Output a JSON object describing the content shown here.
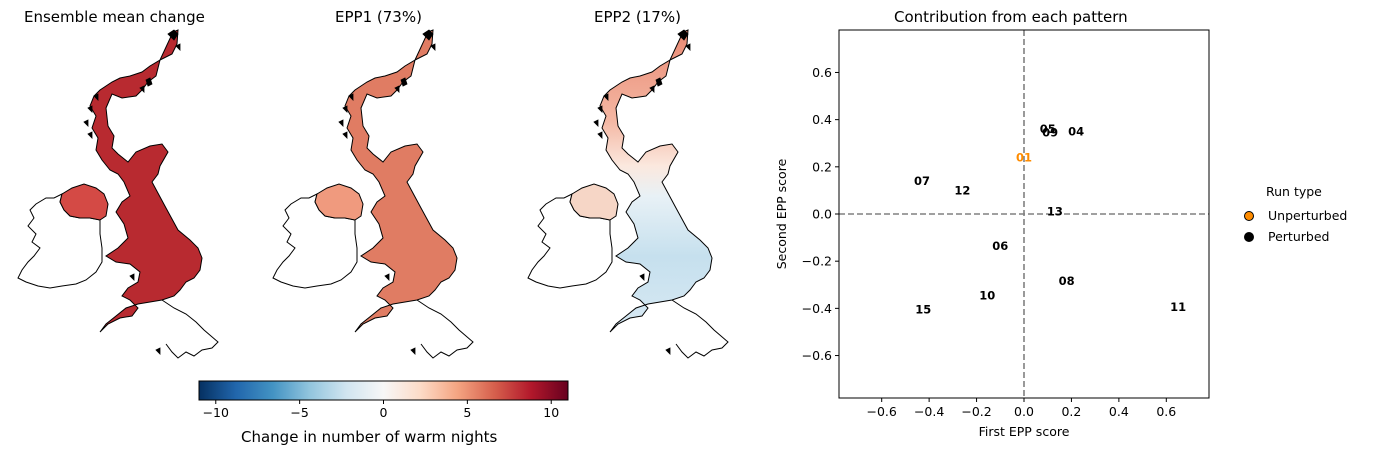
{
  "maps": [
    {
      "title": "Ensemble mean change",
      "fill_gb": "#b82a30",
      "fill_ni": "#d44a45",
      "mode": "mean"
    },
    {
      "title": "EPP1 (73%)",
      "fill_gb": "#e07c63",
      "fill_ni": "#f09a7e",
      "mode": "epp1"
    },
    {
      "title": "EPP2 (17%)",
      "fill_gb": "#cfe4ef",
      "fill_ni": "#f6d6c6",
      "mode": "epp2"
    }
  ],
  "colorbar": {
    "label": "Change in number of warm nights",
    "ticks": [
      "−10",
      "−5",
      "0",
      "5",
      "10"
    ],
    "tick_values": [
      -10,
      -5,
      0,
      5,
      10
    ],
    "range": [
      -11,
      11
    ],
    "colormap": "RdBu_r"
  },
  "chart_data": {
    "type": "scatter",
    "title": "Contribution from each pattern",
    "xlabel": "First EPP score",
    "ylabel": "Second EPP score",
    "xlim": [
      -0.78,
      0.78
    ],
    "ylim": [
      -0.78,
      0.78
    ],
    "xticks": [
      "−0.6",
      "−0.4",
      "−0.2",
      "0.0",
      "0.2",
      "0.4",
      "0.6"
    ],
    "xtick_values": [
      -0.6,
      -0.4,
      -0.2,
      0.0,
      0.2,
      0.4,
      0.6
    ],
    "yticks": [
      "−0.6",
      "−0.4",
      "−0.2",
      "0.0",
      "0.2",
      "0.4",
      "0.6"
    ],
    "ytick_values": [
      -0.6,
      -0.4,
      -0.2,
      0.0,
      0.2,
      0.4,
      0.6
    ],
    "reference_lines": {
      "x": 0,
      "y": 0,
      "style": "dashed",
      "color": "#808080"
    },
    "points": [
      {
        "label": "01",
        "x": 0.0,
        "y": 0.24,
        "run_type": "Unperturbed"
      },
      {
        "label": "04",
        "x": 0.22,
        "y": 0.35,
        "run_type": "Perturbed"
      },
      {
        "label": "05",
        "x": 0.1,
        "y": 0.36,
        "run_type": "Perturbed"
      },
      {
        "label": "09",
        "x": 0.11,
        "y": 0.345,
        "run_type": "Perturbed"
      },
      {
        "label": "07",
        "x": -0.43,
        "y": 0.14,
        "run_type": "Perturbed"
      },
      {
        "label": "12",
        "x": -0.26,
        "y": 0.1,
        "run_type": "Perturbed"
      },
      {
        "label": "13",
        "x": 0.13,
        "y": 0.01,
        "run_type": "Perturbed"
      },
      {
        "label": "06",
        "x": -0.1,
        "y": -0.135,
        "run_type": "Perturbed"
      },
      {
        "label": "08",
        "x": 0.18,
        "y": -0.285,
        "run_type": "Perturbed"
      },
      {
        "label": "10",
        "x": -0.155,
        "y": -0.345,
        "run_type": "Perturbed"
      },
      {
        "label": "15",
        "x": -0.425,
        "y": -0.405,
        "run_type": "Perturbed"
      },
      {
        "label": "11",
        "x": 0.65,
        "y": -0.395,
        "run_type": "Perturbed"
      }
    ],
    "legend": {
      "title": "Run type",
      "placement": "right",
      "entries": [
        {
          "label": "Unperturbed",
          "color": "#ff8c00"
        },
        {
          "label": "Perturbed",
          "color": "#000000"
        }
      ]
    }
  }
}
